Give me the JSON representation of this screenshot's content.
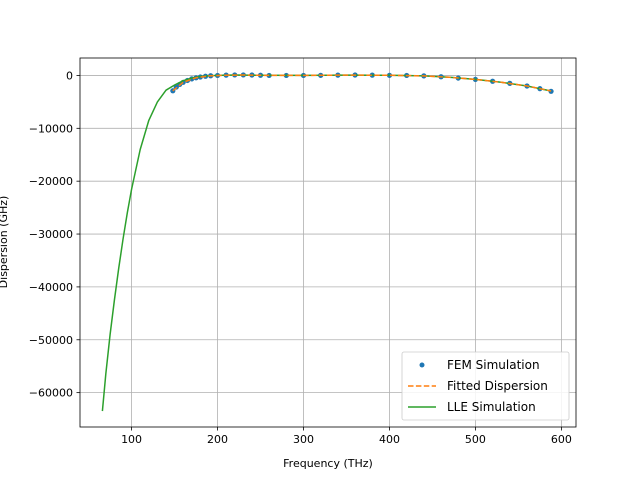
{
  "chart_data": {
    "type": "line",
    "title": "",
    "xlabel": "Frequency (THz)",
    "ylabel": "Dispersion (GHz)",
    "xlim": [
      40,
      617
    ],
    "ylim": [
      -66500,
      3300
    ],
    "xticks": [
      100,
      200,
      300,
      400,
      500,
      600
    ],
    "yticks": [
      0,
      -10000,
      -20000,
      -30000,
      -40000,
      -50000,
      -60000
    ],
    "xtick_labels": [
      "100",
      "200",
      "300",
      "400",
      "500",
      "600"
    ],
    "ytick_labels": [
      "0",
      "−10000",
      "−20000",
      "−30000",
      "−40000",
      "−50000",
      "−60000"
    ],
    "grid": true,
    "legend_position": "lower-right",
    "legend_entries": [
      "FEM Simulation",
      "Fitted Dispersion",
      "LLE Simulation"
    ],
    "series": [
      {
        "name": "FEM Simulation",
        "style": "markers",
        "color": "#1f77b4",
        "x": [
          148,
          152,
          156,
          160,
          165,
          170,
          175,
          180,
          186,
          192,
          200,
          210,
          220,
          230,
          240,
          250,
          260,
          280,
          300,
          320,
          340,
          360,
          380,
          400,
          420,
          440,
          460,
          480,
          500,
          520,
          540,
          560,
          575,
          588
        ],
        "y": [
          -2900,
          -2200,
          -1700,
          -1300,
          -950,
          -650,
          -450,
          -300,
          -150,
          -60,
          0,
          60,
          100,
          100,
          80,
          40,
          0,
          0,
          0,
          20,
          60,
          80,
          60,
          20,
          0,
          -80,
          -250,
          -500,
          -750,
          -1100,
          -1500,
          -2000,
          -2500,
          -3000
        ]
      },
      {
        "name": "Fitted Dispersion",
        "style": "dashed",
        "color": "#ff7f0e",
        "x": [
          148,
          160,
          175,
          190,
          210,
          230,
          260,
          300,
          350,
          400,
          440,
          470,
          500,
          530,
          560,
          588
        ],
        "y": [
          -2900,
          -1300,
          -450,
          -80,
          40,
          90,
          10,
          0,
          70,
          20,
          -80,
          -350,
          -750,
          -1300,
          -2000,
          -2950
        ]
      },
      {
        "name": "LLE Simulation",
        "style": "solid",
        "color": "#2ca02c",
        "x": [
          66,
          70,
          75,
          80,
          85,
          90,
          95,
          100,
          110,
          120,
          130,
          140,
          150,
          160,
          170,
          180,
          190,
          200,
          220,
          250,
          300,
          350,
          400,
          440,
          470,
          500,
          530,
          560,
          588
        ],
        "y": [
          -63500,
          -56500,
          -49000,
          -42500,
          -36500,
          -31000,
          -26000,
          -21500,
          -14000,
          -8500,
          -5000,
          -2800,
          -1800,
          -1000,
          -500,
          -200,
          -60,
          0,
          80,
          20,
          0,
          60,
          20,
          -80,
          -350,
          -750,
          -1300,
          -2000,
          -2950
        ]
      }
    ]
  }
}
